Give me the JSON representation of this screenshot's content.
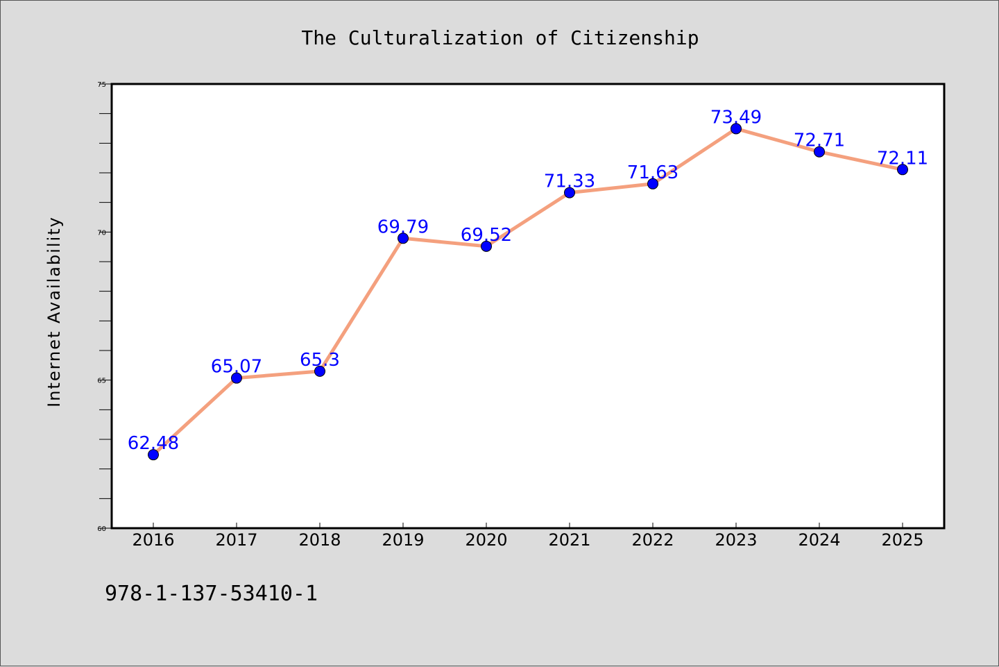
{
  "chart_data": {
    "type": "line",
    "title": "The Culturalization of Citizenship",
    "xlabel": "",
    "ylabel": "Internet Availability",
    "x": [
      "2016",
      "2017",
      "2018",
      "2019",
      "2020",
      "2021",
      "2022",
      "2023",
      "2024",
      "2025"
    ],
    "series": [
      {
        "values": [
          62.48,
          65.07,
          65.3,
          69.79,
          69.52,
          71.33,
          71.63,
          73.49,
          72.71,
          72.11
        ],
        "labels": [
          "62.48",
          "65.07",
          "65.3",
          "69.79",
          "69.52",
          "71.33",
          "71.63",
          "73.49",
          "72.71",
          "72.11"
        ],
        "line_color": "#f4a07e",
        "marker_color": "#0000ff"
      }
    ],
    "ylim": [
      60,
      75
    ],
    "yticks": [
      "60",
      "65",
      "70",
      "75"
    ],
    "grid": false,
    "legend": "none"
  },
  "footer": {
    "text": "978-1-137-53410-1"
  },
  "colors": {
    "background": "#dcdcdc",
    "plot_background": "#ffffff",
    "label_color": "#0000ff"
  }
}
